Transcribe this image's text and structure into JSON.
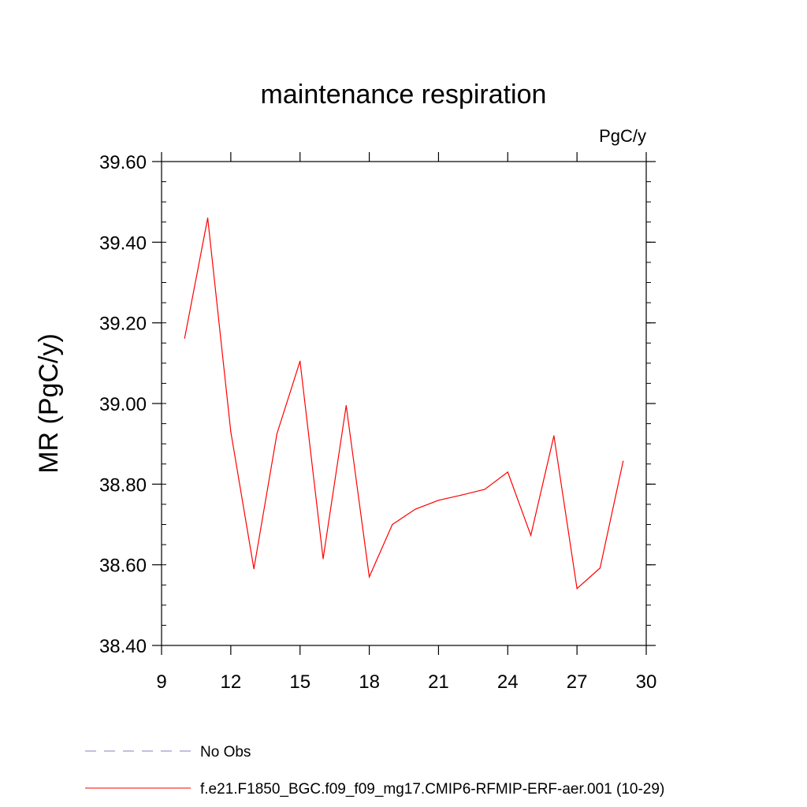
{
  "chart_data": {
    "type": "line",
    "title": "maintenance respiration",
    "units_label": "PgC/y",
    "xlabel": "",
    "ylabel": "MR  (PgC/y)",
    "xlim": [
      9,
      30
    ],
    "ylim": [
      38.4,
      39.6
    ],
    "x_ticks": [
      9,
      12,
      15,
      18,
      21,
      24,
      27,
      30
    ],
    "x_tick_labels": [
      "9",
      "12",
      "15",
      "18",
      "21",
      "24",
      "27",
      "30"
    ],
    "y_ticks": [
      38.4,
      38.6,
      38.8,
      39.0,
      39.2,
      39.4,
      39.6
    ],
    "y_tick_labels": [
      "38.40",
      "38.60",
      "38.80",
      "39.00",
      "39.20",
      "39.40",
      "39.60"
    ],
    "series": [
      {
        "name": "f.e21.F1850_BGC.f09_f09_mg17.CMIP6-RFMIP-ERF-aer.001 (10-29)",
        "color": "#ff0000",
        "x": [
          10,
          11,
          12,
          13,
          14,
          15,
          16,
          17,
          18,
          19,
          20,
          21,
          22,
          23,
          24,
          25,
          26,
          27,
          28,
          29
        ],
        "y": [
          39.162,
          39.46,
          38.93,
          38.59,
          38.925,
          39.105,
          38.615,
          38.995,
          38.57,
          38.7,
          38.738,
          38.76,
          38.773,
          38.787,
          38.83,
          38.673,
          38.92,
          38.541,
          38.592,
          38.857
        ]
      }
    ],
    "legend": [
      {
        "label": "No Obs",
        "style": "dashed",
        "color": "#8080c0"
      },
      {
        "label": "f.e21.F1850_BGC.f09_f09_mg17.CMIP6-RFMIP-ERF-aer.001 (10-29)",
        "style": "solid",
        "color": "#ff0000"
      }
    ]
  }
}
